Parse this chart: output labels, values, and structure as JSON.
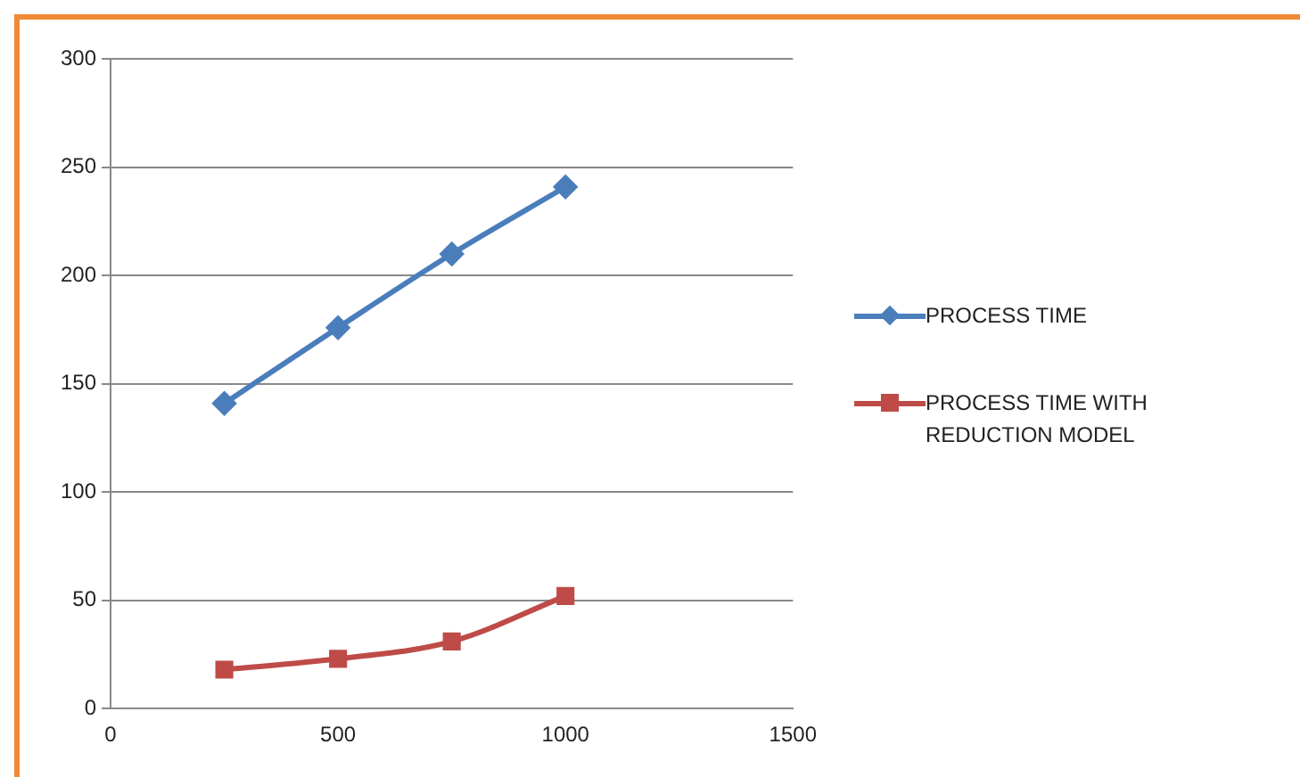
{
  "chart_data": {
    "type": "line",
    "x": [
      250,
      500,
      750,
      1000
    ],
    "series": [
      {
        "name": "PROCESS TIME",
        "color": "#4a7ebb",
        "values": [
          141,
          176,
          210,
          241
        ],
        "marker": "diamond"
      },
      {
        "name": "PROCESS TIME WITH REDUCTION MODEL",
        "color": "#be4b48",
        "values": [
          18,
          23,
          31,
          52
        ],
        "marker": "square"
      }
    ],
    "xlim": [
      0,
      1500
    ],
    "xticks": [
      0,
      500,
      1000,
      1500
    ],
    "ylim": [
      0,
      300
    ],
    "yticks": [
      0,
      50,
      100,
      150,
      200,
      250,
      300
    ],
    "grid": "y",
    "legend": "right",
    "line_style": "solid"
  }
}
